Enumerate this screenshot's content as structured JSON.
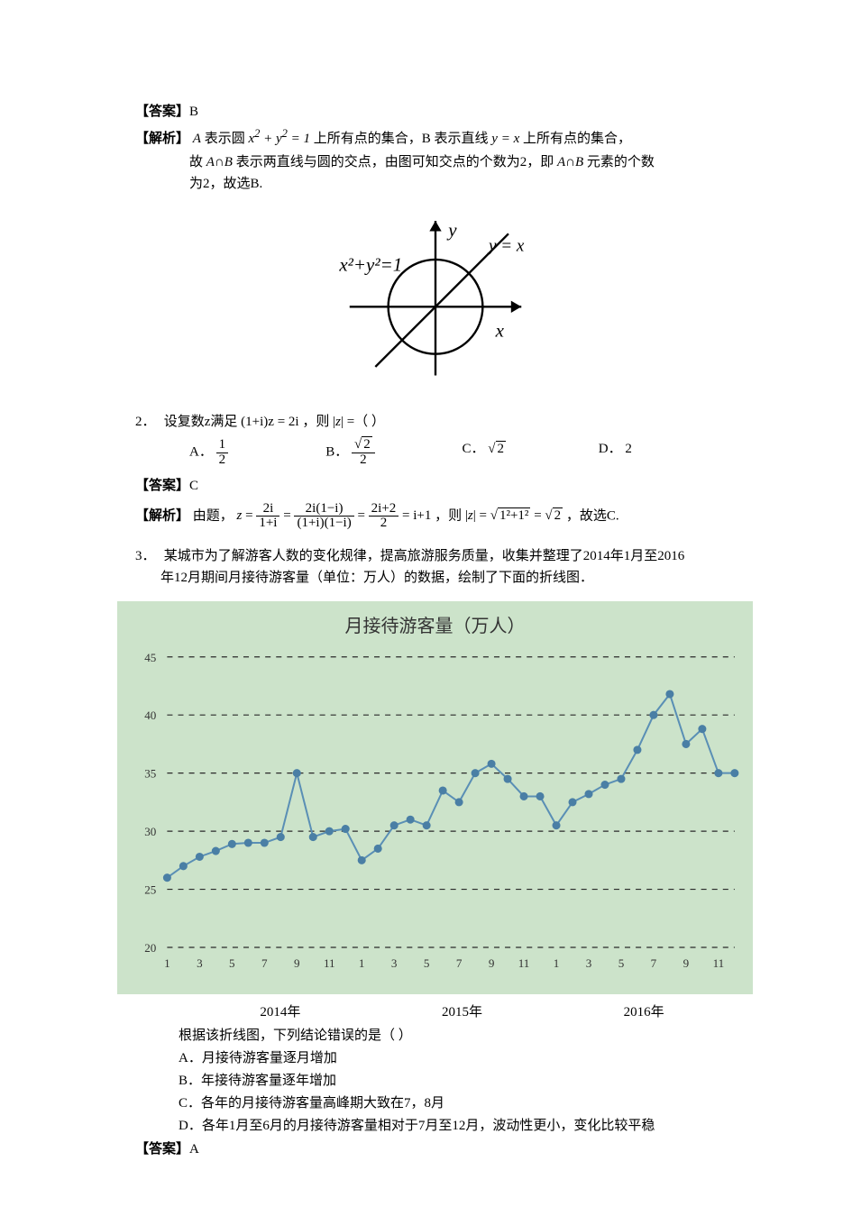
{
  "q1": {
    "answer_label": "【答案】",
    "answer_value": "B",
    "analysis_label": "【解析】",
    "analysis_line1_a": "A 表示圆",
    "analysis_eq1": "x² + y² = 1",
    "analysis_line1_b": "上所有点的集合，B 表示直线",
    "analysis_eq2": "y = x",
    "analysis_line1_c": "上所有点的集合，",
    "analysis_line2": "故 A∩B 表示两直线与圆的交点，由图可知交点的个数为2，即 A∩B 元素的个数为2，故选B.",
    "fig": {
      "x_label": "x",
      "y_label": "y",
      "circle_label": "x²+y²=1",
      "line_label": "y = x"
    }
  },
  "q2": {
    "num": "2．",
    "stem_a": "设复数z满足",
    "stem_eq": "(1+i)z = 2i",
    "stem_b": "，则 |z| =（ ）",
    "options": {
      "A": "A．",
      "A_val_num": "1",
      "A_val_den": "2",
      "B": "B．",
      "B_val_num": "√2",
      "B_val_den": "2",
      "C": "C．",
      "C_val": "√2",
      "D": "D．",
      "D_val": "2"
    },
    "answer_label": "【答案】",
    "answer_value": "C",
    "analysis_label": "【解析】",
    "analysis_text_a": "由题，",
    "analysis_math": "z = 2i/(1+i) = 2i(1−i)/[(1+i)(1−i)] = (2i+2)/2 = i+1",
    "analysis_text_b": "，则",
    "analysis_math2": "|z| = √(1²+1²) = √2",
    "analysis_text_c": "，故选C."
  },
  "q3": {
    "num": "3．",
    "stem_line1": "某城市为了解游客人数的变化规律，提高旅游服务质量，收集并整理了2014年1月至2016",
    "stem_line2": "年12月期间月接待游客量（单位：万人）的数据，绘制了下面的折线图．",
    "chart": {
      "title": "月接待游客量（万人）",
      "background": "#cce3ca",
      "grid_color": "#2a2a2a",
      "line_color": "#5a8fb5",
      "marker_color": "#4a7fa5",
      "y_ticks": [
        20,
        25,
        30,
        35,
        40,
        45
      ],
      "x_ticks": [
        "1",
        "3",
        "5",
        "7",
        "9",
        "11",
        "1",
        "3",
        "5",
        "7",
        "9",
        "11",
        "1",
        "3",
        "5",
        "7",
        "9",
        "11"
      ],
      "years": [
        "2014年",
        "2015年",
        "2016年"
      ],
      "values": [
        26.0,
        27.0,
        27.8,
        28.3,
        28.9,
        29.0,
        29.0,
        29.5,
        35.0,
        29.5,
        30.0,
        30.2,
        27.5,
        28.5,
        30.5,
        31.0,
        30.5,
        33.5,
        32.5,
        35.0,
        35.8,
        34.5,
        33.0,
        33.0,
        30.5,
        32.5,
        33.2,
        34.0,
        34.5,
        37.0,
        40.0,
        41.8,
        37.5,
        38.8,
        35.0,
        35.0
      ],
      "label_fontsize": 13,
      "marker_radius": 4,
      "line_width": 2
    },
    "after_chart_label": "根据该折线图，下列结论错误的是（ ）",
    "opts": {
      "A": "A．月接待游客量逐月增加",
      "B": "B．年接待游客量逐年增加",
      "C": "C．各年的月接待游客量高峰期大致在7，8月",
      "D": "D．各年1月至6月的月接待游客量相对于7月至12月，波动性更小，变化比较平稳"
    },
    "answer_label": "【答案】",
    "answer_value": "A"
  }
}
